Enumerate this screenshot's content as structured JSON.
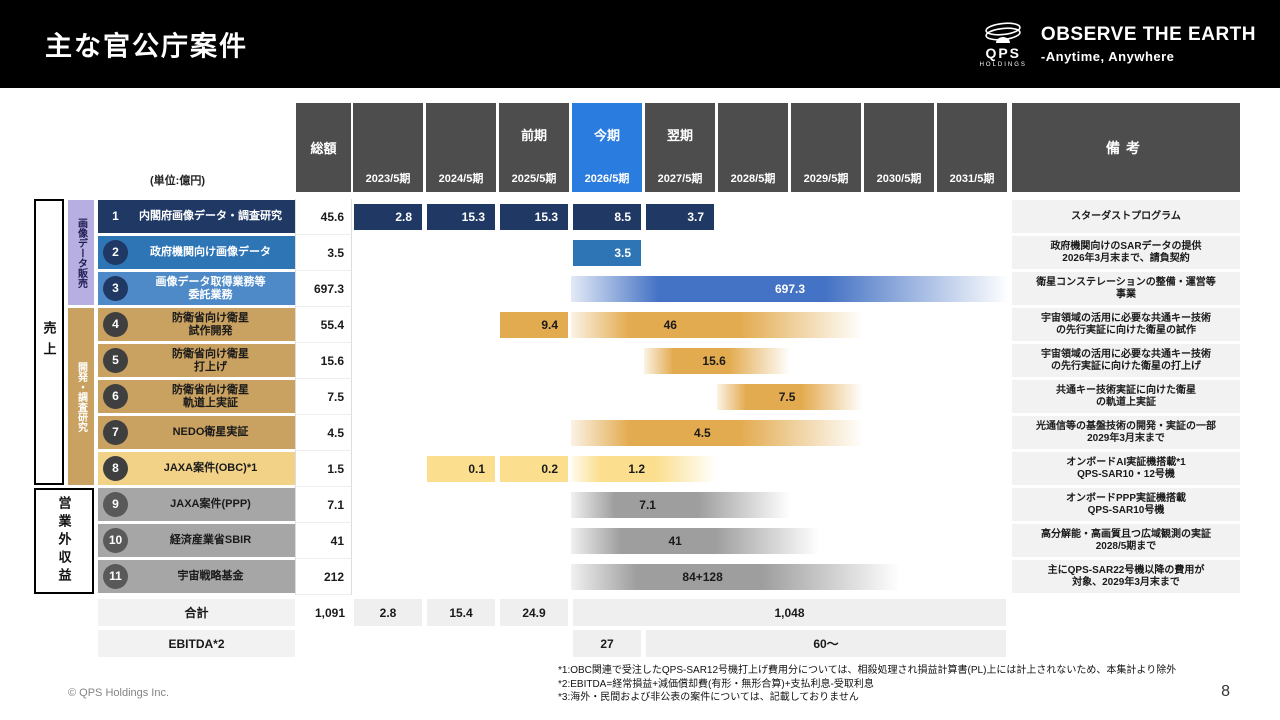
{
  "header": {
    "title": "主な官公庁案件",
    "logo": {
      "qps": "QPS",
      "holdings": "HOLDINGS",
      "tagline": "OBSERVE THE EARTH",
      "tagline_sub": "-Anytime, Anywhere"
    }
  },
  "unit_label": "(単位:億円)",
  "columns": {
    "total": "総額",
    "remarks": "備考",
    "years": [
      "2023/5期",
      "2024/5期",
      "2025/5期",
      "2026/5期",
      "2027/5期",
      "2028/5期",
      "2029/5期",
      "2030/5期",
      "2031/5期"
    ],
    "current_col": 3,
    "period_labels": [
      {
        "col": 2,
        "text": "前期"
      },
      {
        "col": 3,
        "text": "今期"
      },
      {
        "col": 4,
        "text": "翌期"
      }
    ]
  },
  "side_labels": {
    "sales": "売上",
    "image_data": "画像データ販売",
    "development": "開発・調査研究",
    "non_operating": "営業外収益"
  },
  "rows": [
    {
      "num": "1",
      "cat": "navy",
      "label": "内閣府画像データ・調査研究",
      "total": "45.6",
      "bars": [
        {
          "type": "box",
          "start": 0,
          "span": 1,
          "value": "2.8"
        },
        {
          "type": "box",
          "start": 1,
          "span": 1,
          "value": "15.3"
        },
        {
          "type": "box",
          "start": 2,
          "span": 1,
          "value": "15.3"
        },
        {
          "type": "box",
          "start": 3,
          "span": 1,
          "value": "8.5"
        },
        {
          "type": "box",
          "start": 4,
          "span": 1,
          "value": "3.7"
        }
      ],
      "remark": "スターダストプログラム"
    },
    {
      "num": "2",
      "cat": "blue",
      "label": "政府機関向け画像データ",
      "total": "3.5",
      "bars": [
        {
          "type": "box",
          "start": 3,
          "span": 1,
          "value": "3.5"
        }
      ],
      "remark": "政府機関向けのSARデータの提供\n2026年3月末まで、請負契約"
    },
    {
      "num": "3",
      "cat": "midblue",
      "label": "画像データ取得業務等\n委託業務",
      "total": "697.3",
      "bars": [
        {
          "type": "fade",
          "start": 3,
          "span": 6,
          "value": "697.3",
          "text_pos": 0.5
        }
      ],
      "remark": "衛星コンステレーションの整備・運営等\n事業"
    },
    {
      "num": "4",
      "cat": "gold",
      "label": "防衛省向け衛星\n試作開発",
      "total": "55.4",
      "bars": [
        {
          "type": "box",
          "start": 2,
          "span": 1,
          "value": "9.4"
        },
        {
          "type": "fade",
          "start": 3,
          "span": 4,
          "value": "46",
          "text_pos": 0.34
        }
      ],
      "remark": "宇宙領域の活用に必要な共通キー技術\nの先行実証に向けた衛星の試作"
    },
    {
      "num": "5",
      "cat": "gold",
      "label": "防衛省向け衛星\n打上げ",
      "total": "15.6",
      "bars": [
        {
          "type": "fade",
          "start": 4,
          "span": 2,
          "value": "15.6",
          "text_pos": 0.48
        }
      ],
      "remark": "宇宙領域の活用に必要な共通キー技術\nの先行実証に向けた衛星の打上げ"
    },
    {
      "num": "6",
      "cat": "gold",
      "label": "防衛省向け衛星\n軌道上実証",
      "total": "7.5",
      "bars": [
        {
          "type": "fade",
          "start": 5,
          "span": 2,
          "value": "7.5",
          "text_pos": 0.48
        }
      ],
      "remark": "共通キー技術実証に向けた衛星\nの軌道上実証"
    },
    {
      "num": "7",
      "cat": "gold",
      "label": "NEDO衛星実証",
      "total": "4.5",
      "bars": [
        {
          "type": "fade",
          "start": 3,
          "span": 4,
          "value": "4.5",
          "text_pos": 0.45
        }
      ],
      "remark": "光通信等の基盤技術の開発・実証の一部\n2029年3月末まで"
    },
    {
      "num": "8",
      "cat": "lightgold",
      "label": "JAXA案件(OBC)*1",
      "total": "1.5",
      "bars": [
        {
          "type": "box",
          "start": 1,
          "span": 1,
          "value": "0.1"
        },
        {
          "type": "box",
          "start": 2,
          "span": 1,
          "value": "0.2"
        },
        {
          "type": "fade",
          "start": 3,
          "span": 2,
          "value": "1.2",
          "text_pos": 0.45
        }
      ],
      "remark": "オンボードAI実証機搭載*1\nQPS-SAR10・12号機"
    },
    {
      "num": "9",
      "cat": "gray",
      "label": "JAXA案件(PPP)",
      "total": "7.1",
      "bars": [
        {
          "type": "fade",
          "start": 3,
          "span": 3,
          "value": "7.1",
          "text_pos": 0.35
        }
      ],
      "remark": "オンボードPPP実証機搭載\nQPS-SAR10号機"
    },
    {
      "num": "10",
      "cat": "gray",
      "label": "経済産業省SBIR",
      "total": "41",
      "bars": [
        {
          "type": "fade",
          "start": 3,
          "span": 3.4,
          "value": "41",
          "text_pos": 0.42
        }
      ],
      "remark": "高分解能・高画質且つ広域観測の実証\n2028/5期まで"
    },
    {
      "num": "11",
      "cat": "gray",
      "label": "宇宙戦略基金",
      "total": "212",
      "bars": [
        {
          "type": "fade",
          "start": 3,
          "span": 4.5,
          "value": "84+128",
          "text_pos": 0.4
        }
      ],
      "remark": "主にQPS-SAR22号機以降の費用が\n対象、2029年3月末まで"
    }
  ],
  "summary": {
    "total_label": "合計",
    "total_amount": "1,091",
    "cells": [
      {
        "col": 0,
        "value": "2.8"
      },
      {
        "col": 1,
        "value": "15.4"
      },
      {
        "col": 2,
        "value": "24.9"
      }
    ],
    "merged": {
      "start": 3,
      "span": 6,
      "value": "1,048"
    },
    "ebitda_label": "EBITDA*2",
    "ebitda_cells": [
      {
        "start": 3,
        "span": 1,
        "value": "27"
      },
      {
        "start": 4,
        "span": 5,
        "value": "60～"
      }
    ]
  },
  "footnotes": [
    "*1:OBC関連で受注したQPS-SAR12号機打上げ費用分については、相殺処理され損益計算書(PL)上には計上されないため、本集計より除外",
    "*2:EBITDA=経常損益+減価償却費(有形・無形合算)+支払利息-受取利息",
    "*3:海外・民間および非公表の案件については、記載しておりません"
  ],
  "footer": {
    "copyright": "© QPS Holdings Inc.",
    "page": "8"
  },
  "colors": {
    "header_black": "#000000",
    "header_gray": "#4d4d4d",
    "current_blue": "#2b7cdf",
    "navy": "#1f3864",
    "blue": "#2e75b6",
    "midblue": "#4e8ac8",
    "bar_blue": "#4472c4",
    "gold_label": "#c9a160",
    "gold_bar": "#e3ab4f",
    "lightgold_label": "#f2d287",
    "lightgold_bar": "#fbdf8e",
    "gray_label": "#a6a6a6",
    "gray_bar": "#9e9e9e",
    "lavender": "#b7aee2",
    "cell_gray": "#f2f2f2"
  }
}
